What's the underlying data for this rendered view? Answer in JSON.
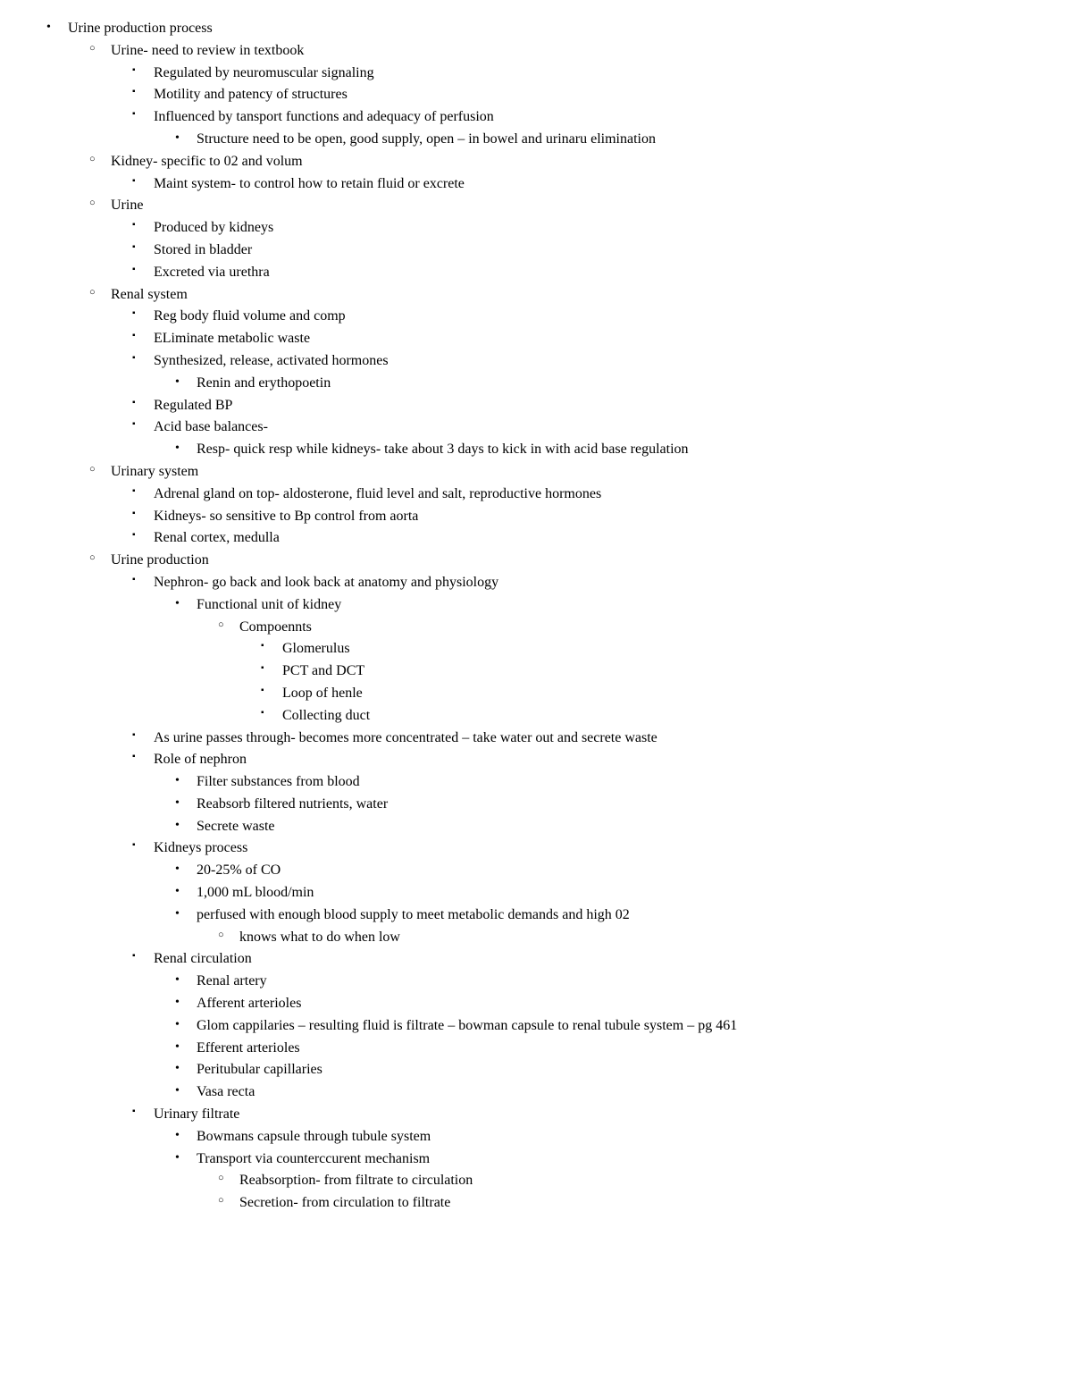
{
  "font": {
    "family": "Times New Roman",
    "size_pt": 12,
    "color": "#000000"
  },
  "background_color": "#ffffff",
  "bullets": {
    "level_styles": [
      "disc",
      "circle",
      "square",
      "disc",
      "circle",
      "square"
    ]
  },
  "outline": {
    "title": "Urine production process",
    "items": [
      {
        "t": "Urine- need to review in textbook",
        "c": [
          {
            "t": "Regulated by neuromuscular signaling"
          },
          {
            "t": "Motility and patency of structures"
          },
          {
            "t": "Influenced by tansport functions and adequacy of perfusion",
            "c": [
              {
                "t": "Structure need to be open, good supply, open – in bowel and urinaru elimination"
              }
            ]
          }
        ]
      },
      {
        "t": "Kidney- specific to 02 and volum",
        "c": [
          {
            "t": "Maint system- to control how to retain fluid or excrete"
          }
        ]
      },
      {
        "t": "Urine",
        "c": [
          {
            "t": "Produced by kidneys"
          },
          {
            "t": "Stored in bladder"
          },
          {
            "t": "Excreted via urethra"
          }
        ]
      },
      {
        "t": "Renal system",
        "c": [
          {
            "t": "Reg body fluid volume and comp"
          },
          {
            "t": "ELiminate metabolic waste"
          },
          {
            "t": "Synthesized, release, activated hormones",
            "c": [
              {
                "t": "Renin and erythopoetin"
              }
            ]
          },
          {
            "t": "Regulated BP"
          },
          {
            "t": "Acid base balances-",
            "c": [
              {
                "t": "Resp- quick resp while kidneys- take about 3 days to kick in with acid base regulation"
              }
            ]
          }
        ]
      },
      {
        "t": "Urinary system",
        "c": [
          {
            "t": "Adrenal gland on top- aldosterone, fluid level and salt, reproductive hormones"
          },
          {
            "t": "Kidneys- so sensitive to Bp control from aorta"
          },
          {
            "t": "Renal cortex, medulla"
          }
        ]
      },
      {
        "t": "Urine production",
        "c": [
          {
            "t": "Nephron- go back and look back at anatomy and physiology",
            "c": [
              {
                "t": "Functional unit of kidney",
                "c": [
                  {
                    "t": "Compoennts",
                    "c": [
                      {
                        "t": "Glomerulus"
                      },
                      {
                        "t": "PCT and DCT"
                      },
                      {
                        "t": "Loop of henle"
                      },
                      {
                        "t": "Collecting duct"
                      }
                    ]
                  }
                ]
              }
            ]
          },
          {
            "t": "As urine passes through- becomes more concentrated – take water out and secrete waste"
          },
          {
            "t": "Role of nephron",
            "c": [
              {
                "t": "Filter substances from blood"
              },
              {
                "t": "Reabsorb filtered nutrients, water"
              },
              {
                "t": "Secrete waste"
              }
            ]
          },
          {
            "t": "Kidneys process",
            "c": [
              {
                "t": "20-25% of CO"
              },
              {
                "t": "1,000 mL blood/min"
              },
              {
                "t": "perfused with enough blood supply to meet metabolic demands and high 02",
                "c": [
                  {
                    "t": "knows what to do when low"
                  }
                ]
              }
            ]
          },
          {
            "t": "Renal circulation",
            "c": [
              {
                "t": "Renal artery"
              },
              {
                "t": "Afferent arterioles"
              },
              {
                "t": "Glom cappilaries – resulting fluid is filtrate – bowman capsule to renal tubule system – pg 461"
              },
              {
                "t": "Efferent arterioles"
              },
              {
                "t": "Peritubular capillaries"
              },
              {
                "t": "Vasa recta"
              }
            ]
          },
          {
            "t": "Urinary filtrate",
            "c": [
              {
                "t": "Bowmans capsule through tubule system"
              },
              {
                "t": "Transport via counterccurent mechanism",
                "c": [
                  {
                    "t": "Reabsorption- from filtrate to circulation"
                  },
                  {
                    "t": "Secretion- from circulation to filtrate"
                  }
                ]
              }
            ]
          }
        ]
      }
    ]
  }
}
